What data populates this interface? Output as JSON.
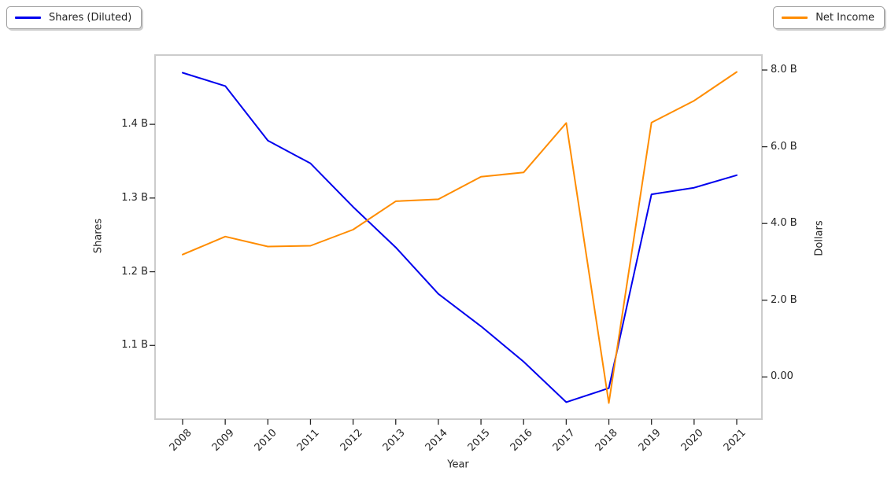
{
  "figure": {
    "background": "#ffffff",
    "frame_color": "#cccccc",
    "text_color": "#262626"
  },
  "legend_left": {
    "label": "Shares (Diluted)"
  },
  "legend_right": {
    "label": "Net Income"
  },
  "chart_data": {
    "type": "line",
    "x": [
      "2008",
      "2009",
      "2010",
      "2011",
      "2012",
      "2013",
      "2014",
      "2015",
      "2016",
      "2017",
      "2018",
      "2019",
      "2020",
      "2021"
    ],
    "xlabel": "Year",
    "grid": false,
    "legend_position": [
      "top-left",
      "top-right"
    ],
    "series": [
      {
        "name": "Shares (Diluted)",
        "axis": "left",
        "color": "#0000ee",
        "unit": "billions of shares",
        "values": [
          1.47,
          1.452,
          1.378,
          1.347,
          1.288,
          1.233,
          1.17,
          1.126,
          1.078,
          1.023,
          1.042,
          1.305,
          1.314,
          1.331
        ]
      },
      {
        "name": "Net Income",
        "axis": "right",
        "color": "#ff8c00",
        "unit": "billions of dollars",
        "values": [
          3.19,
          3.66,
          3.4,
          3.42,
          3.84,
          4.58,
          4.63,
          5.22,
          5.33,
          6.62,
          -0.68,
          6.63,
          7.2,
          7.95
        ]
      }
    ],
    "left_axis": {
      "label": "Shares",
      "range": [
        1.0,
        1.494
      ],
      "ticks": [
        {
          "label": "1.4 B",
          "value": 1.4
        },
        {
          "label": "1.3 B",
          "value": 1.3
        },
        {
          "label": "1.2 B",
          "value": 1.2
        },
        {
          "label": "1.1 B",
          "value": 1.1
        }
      ]
    },
    "right_axis": {
      "label": "Dollars",
      "range": [
        -1.1,
        8.39
      ],
      "ticks": [
        {
          "label": "8.0 B",
          "value": 8.0
        },
        {
          "label": "6.0 B",
          "value": 6.0
        },
        {
          "label": "4.0 B",
          "value": 4.0
        },
        {
          "label": "2.0 B",
          "value": 2.0
        },
        {
          "label": "0.00",
          "value": 0.0
        }
      ]
    }
  }
}
